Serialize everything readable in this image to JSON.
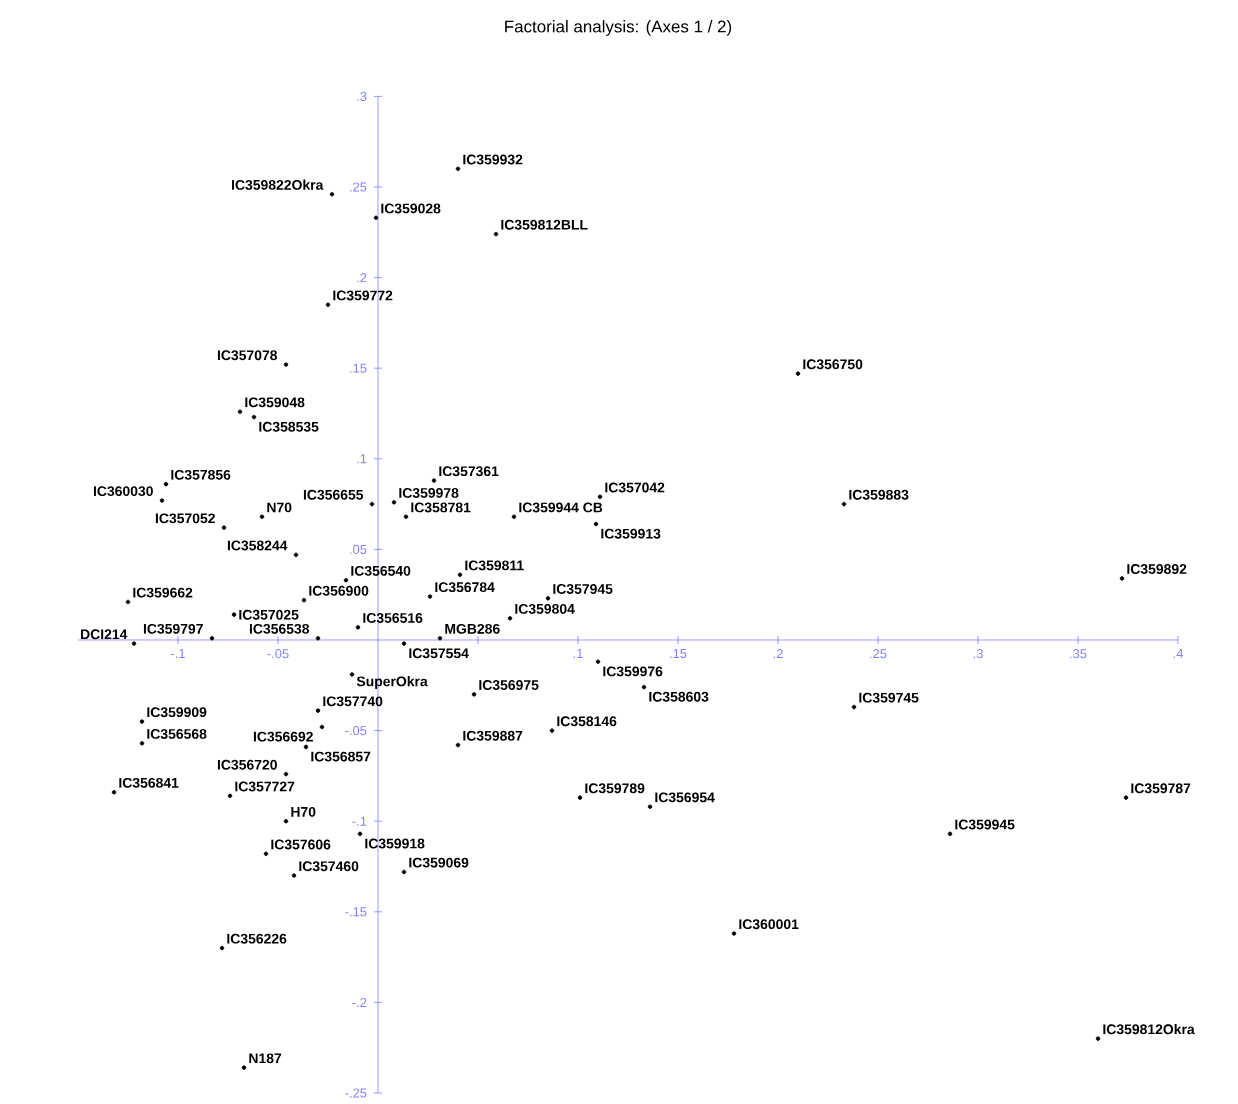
{
  "chart_data": {
    "type": "scatter",
    "title": "Factorial analysis: (Axes 1 / 2)",
    "xlim": [
      -0.15,
      0.4
    ],
    "ylim": [
      -0.25,
      0.3
    ],
    "xticks": [
      {
        "value": -0.1,
        "label": "-.1"
      },
      {
        "value": -0.05,
        "label": "-.05"
      },
      {
        "value": 0.05,
        "label": null
      },
      {
        "value": 0.1,
        "label": ".1"
      },
      {
        "value": 0.15,
        "label": ".15"
      },
      {
        "value": 0.2,
        "label": ".2"
      },
      {
        "value": 0.25,
        "label": ".25"
      },
      {
        "value": 0.3,
        "label": ".3"
      },
      {
        "value": 0.35,
        "label": ".35"
      },
      {
        "value": 0.4,
        "label": ".4"
      }
    ],
    "yticks": [
      {
        "value": -0.25,
        "label": "-.25"
      },
      {
        "value": -0.2,
        "label": "-.2"
      },
      {
        "value": -0.15,
        "label": "-.15"
      },
      {
        "value": -0.1,
        "label": "-.1"
      },
      {
        "value": -0.05,
        "label": "-.05"
      },
      {
        "value": 0.05,
        "label": ".05"
      },
      {
        "value": 0.1,
        "label": ".1"
      },
      {
        "value": 0.15,
        "label": ".15"
      },
      {
        "value": 0.2,
        "label": ".2"
      },
      {
        "value": 0.25,
        "label": ".25"
      },
      {
        "value": 0.3,
        "label": ".3"
      }
    ],
    "marker": "circle",
    "series": [
      {
        "color": "#000000",
        "x": [
          0.04,
          -0.023,
          -0.001,
          0.059,
          -0.025,
          -0.046,
          -0.069,
          -0.062,
          0.21,
          -0.106,
          -0.108,
          -0.003,
          0.008,
          0.014,
          0.028,
          0.068,
          0.111,
          0.109,
          0.233,
          0.372,
          0.085,
          0.026,
          0.041,
          0.066,
          0.031,
          0.013,
          -0.01,
          -0.03,
          -0.083,
          -0.122,
          -0.125,
          -0.072,
          -0.037,
          -0.016,
          -0.041,
          -0.077,
          -0.058,
          -0.013,
          -0.03,
          -0.118,
          -0.118,
          -0.028,
          -0.036,
          -0.046,
          -0.132,
          -0.074,
          -0.046,
          -0.009,
          -0.056,
          -0.042,
          0.013,
          -0.078,
          -0.067,
          0.048,
          0.04,
          0.11,
          0.133,
          0.238,
          0.087,
          0.101,
          0.136,
          0.374,
          0.286,
          0.178,
          0.36
        ],
        "values": [
          0.26,
          0.246,
          0.233,
          0.224,
          0.185,
          0.152,
          0.126,
          0.123,
          0.147,
          0.086,
          0.077,
          0.075,
          0.076,
          0.068,
          0.088,
          0.068,
          0.079,
          0.064,
          0.075,
          0.034,
          0.023,
          0.024,
          0.036,
          0.012,
          0.001,
          -0.002,
          0.007,
          0.001,
          0.001,
          -0.002,
          0.021,
          0.014,
          0.022,
          0.033,
          0.047,
          0.062,
          0.068,
          -0.019,
          -0.039,
          -0.045,
          -0.057,
          -0.048,
          -0.059,
          -0.074,
          -0.084,
          -0.086,
          -0.1,
          -0.107,
          -0.118,
          -0.13,
          -0.128,
          -0.17,
          -0.236,
          -0.03,
          -0.058,
          -0.012,
          -0.026,
          -0.037,
          -0.05,
          -0.087,
          -0.092,
          -0.087,
          -0.107,
          -0.162,
          -0.22
        ]
      }
    ],
    "annotations": [
      {
        "text": "IC359932",
        "x": 0.04,
        "y": 0.26
      },
      {
        "text": "IC359822Okra",
        "x": -0.023,
        "y": 0.246
      },
      {
        "text": "IC359028",
        "x": -0.001,
        "y": 0.233
      },
      {
        "text": "IC359812BLL",
        "x": 0.059,
        "y": 0.224
      },
      {
        "text": "IC359772",
        "x": -0.025,
        "y": 0.185
      },
      {
        "text": "IC357078",
        "x": -0.046,
        "y": 0.152
      },
      {
        "text": "IC359048",
        "x": -0.069,
        "y": 0.126
      },
      {
        "text": "IC358535",
        "x": -0.062,
        "y": 0.123
      },
      {
        "text": "IC356750",
        "x": 0.21,
        "y": 0.147
      },
      {
        "text": "IC357856",
        "x": -0.106,
        "y": 0.086
      },
      {
        "text": "IC360030",
        "x": -0.108,
        "y": 0.077
      },
      {
        "text": "IC356655",
        "x": -0.003,
        "y": 0.075
      },
      {
        "text": "IC359978",
        "x": 0.008,
        "y": 0.076
      },
      {
        "text": "IC358781",
        "x": 0.014,
        "y": 0.068
      },
      {
        "text": "IC357361",
        "x": 0.028,
        "y": 0.088
      },
      {
        "text": "IC359944 CB",
        "x": 0.068,
        "y": 0.068
      },
      {
        "text": "IC357042",
        "x": 0.111,
        "y": 0.079
      },
      {
        "text": "IC359913",
        "x": 0.109,
        "y": 0.064
      },
      {
        "text": "IC359883",
        "x": 0.233,
        "y": 0.075
      },
      {
        "text": "IC359892",
        "x": 0.372,
        "y": 0.034
      },
      {
        "text": "IC357945",
        "x": 0.085,
        "y": 0.023
      },
      {
        "text": "IC356784",
        "x": 0.026,
        "y": 0.024
      },
      {
        "text": "IC359811",
        "x": 0.041,
        "y": 0.036
      },
      {
        "text": "IC359804",
        "x": 0.066,
        "y": 0.012
      },
      {
        "text": "MGB286",
        "x": 0.031,
        "y": 0.001
      },
      {
        "text": "IC357554",
        "x": 0.013,
        "y": -0.002
      },
      {
        "text": "IC356516",
        "x": -0.01,
        "y": 0.007
      },
      {
        "text": "IC356538",
        "x": -0.03,
        "y": 0.001
      },
      {
        "text": "IC359797",
        "x": -0.083,
        "y": 0.001
      },
      {
        "text": "DCI214",
        "x": -0.122,
        "y": -0.002
      },
      {
        "text": "IC359662",
        "x": -0.125,
        "y": 0.021
      },
      {
        "text": "IC357025",
        "x": -0.072,
        "y": 0.014
      },
      {
        "text": "IC356900",
        "x": -0.037,
        "y": 0.022
      },
      {
        "text": "IC356540",
        "x": -0.016,
        "y": 0.033
      },
      {
        "text": "IC358244",
        "x": -0.041,
        "y": 0.047
      },
      {
        "text": "IC357052",
        "x": -0.077,
        "y": 0.062
      },
      {
        "text": "N70",
        "x": -0.058,
        "y": 0.068
      },
      {
        "text": "SuperOkra",
        "x": -0.013,
        "y": -0.019
      },
      {
        "text": "IC357740",
        "x": -0.03,
        "y": -0.039
      },
      {
        "text": "IC359909",
        "x": -0.118,
        "y": -0.045
      },
      {
        "text": "IC356568",
        "x": -0.118,
        "y": -0.057
      },
      {
        "text": "IC356692",
        "x": -0.028,
        "y": -0.048
      },
      {
        "text": "IC356857",
        "x": -0.036,
        "y": -0.059
      },
      {
        "text": "IC356720",
        "x": -0.046,
        "y": -0.074
      },
      {
        "text": "IC356841",
        "x": -0.132,
        "y": -0.084
      },
      {
        "text": "IC357727",
        "x": -0.074,
        "y": -0.086
      },
      {
        "text": "H70",
        "x": -0.046,
        "y": -0.1
      },
      {
        "text": "IC359918",
        "x": -0.009,
        "y": -0.107
      },
      {
        "text": "IC357606",
        "x": -0.056,
        "y": -0.118
      },
      {
        "text": "IC357460",
        "x": -0.042,
        "y": -0.13
      },
      {
        "text": "IC359069",
        "x": 0.013,
        "y": -0.128
      },
      {
        "text": "IC356226",
        "x": -0.078,
        "y": -0.17
      },
      {
        "text": "N187",
        "x": -0.067,
        "y": -0.236
      },
      {
        "text": "IC356975",
        "x": 0.048,
        "y": -0.03
      },
      {
        "text": "IC359887",
        "x": 0.04,
        "y": -0.058
      },
      {
        "text": "IC359976",
        "x": 0.11,
        "y": -0.012
      },
      {
        "text": "IC358603",
        "x": 0.133,
        "y": -0.026
      },
      {
        "text": "IC359745",
        "x": 0.238,
        "y": -0.037
      },
      {
        "text": "IC358146",
        "x": 0.087,
        "y": -0.05
      },
      {
        "text": "IC359789",
        "x": 0.101,
        "y": -0.087
      },
      {
        "text": "IC356954",
        "x": 0.136,
        "y": -0.092
      },
      {
        "text": "IC359787",
        "x": 0.374,
        "y": -0.087
      },
      {
        "text": "IC359945",
        "x": 0.286,
        "y": -0.107
      },
      {
        "text": "IC360001",
        "x": 0.178,
        "y": -0.162
      },
      {
        "text": "IC359812Okra",
        "x": 0.36,
        "y": -0.22
      }
    ]
  }
}
